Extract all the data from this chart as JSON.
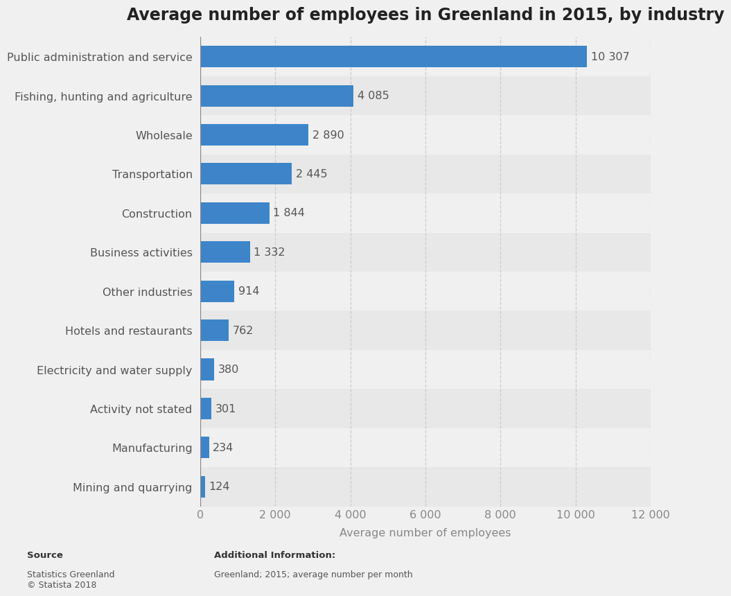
{
  "title": "Average number of employees in Greenland in 2015, by industry",
  "xlabel": "Average number of employees",
  "categories": [
    "Mining and quarrying",
    "Manufacturing",
    "Activity not stated",
    "Electricity and water supply",
    "Hotels and restaurants",
    "Other industries",
    "Business activities",
    "Construction",
    "Transportation",
    "Wholesale",
    "Fishing, hunting and agriculture",
    "Public administration and service"
  ],
  "values": [
    124,
    234,
    301,
    380,
    762,
    914,
    1332,
    1844,
    2445,
    2890,
    4085,
    10307
  ],
  "value_labels": [
    "124",
    "234",
    "301",
    "380",
    "762",
    "914",
    "1 332",
    "1 844",
    "2 445",
    "2 890",
    "4 085",
    "10 307"
  ],
  "bar_color": "#3d85c8",
  "background_color": "#f0f0f0",
  "row_color_odd": "#e8e8e8",
  "row_color_even": "#f0f0f0",
  "title_fontsize": 17,
  "label_fontsize": 11.5,
  "tick_fontsize": 11.5,
  "value_fontsize": 11.5,
  "xlim": [
    0,
    12000
  ],
  "xticks": [
    0,
    2000,
    4000,
    6000,
    8000,
    10000,
    12000
  ],
  "xtick_labels": [
    "0",
    "2 000",
    "4 000",
    "6 000",
    "8 000",
    "10 000",
    "12 000"
  ],
  "source_label": "Source",
  "source_body": "Statistics Greenland\n© Statista 2018",
  "additional_label": "Additional Information:",
  "additional_body": "Greenland; 2015; average number per month"
}
